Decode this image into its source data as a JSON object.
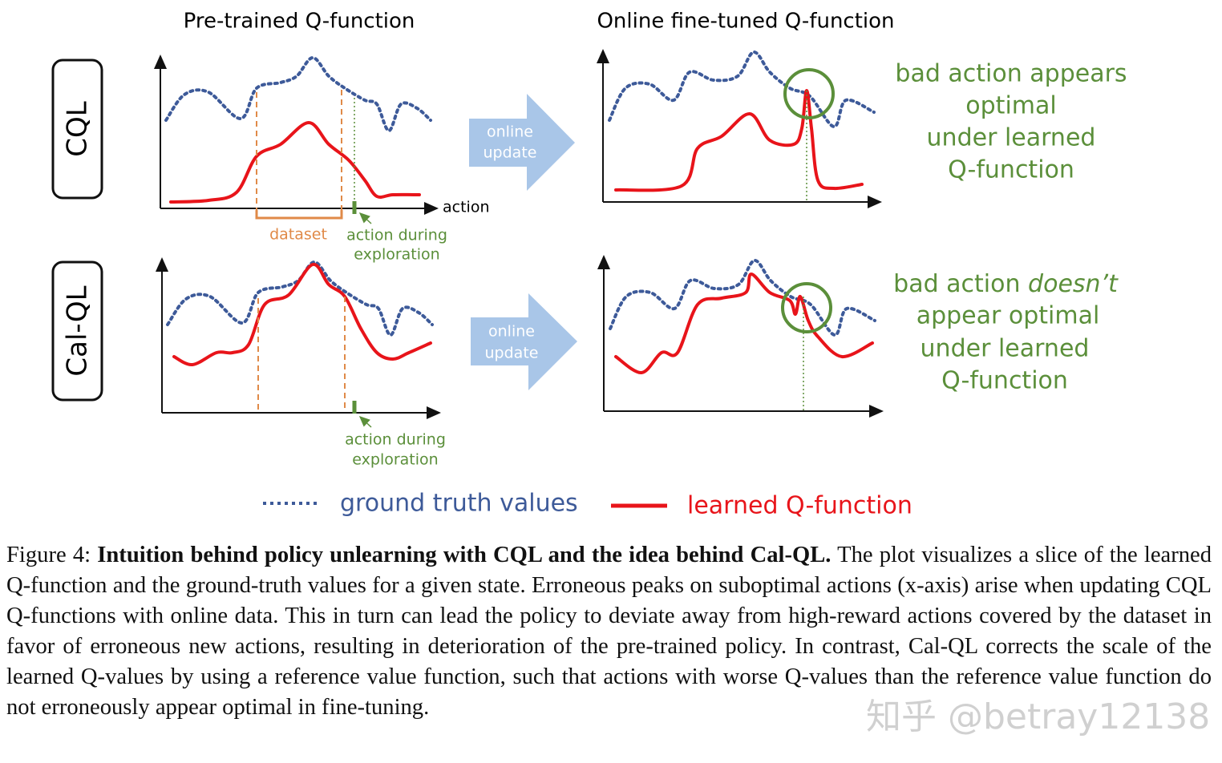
{
  "figure": {
    "left_title": "Pre-trained Q-function",
    "right_title": "Online fine-tuned Q-function",
    "rows": [
      {
        "label": "CQL",
        "arrow_label": [
          "online",
          "update"
        ],
        "x_axis_label": "action",
        "dataset_label": "dataset",
        "exploration_label": [
          "action during",
          "exploration"
        ],
        "annotation": [
          "bad action appears",
          "optimal",
          "under learned",
          "Q-function"
        ]
      },
      {
        "label": "Cal-QL",
        "arrow_label": [
          "online",
          "update"
        ],
        "exploration_label": [
          "action during",
          "exploration"
        ],
        "annotation_first": [
          "bad action ",
          "doesn’t"
        ],
        "annotation": [
          "appear optimal",
          "under learned",
          "Q-function"
        ]
      }
    ],
    "legend": {
      "ground_truth": "ground truth values",
      "learned": "learned Q-function"
    }
  },
  "caption": {
    "label": "Figure 4:",
    "bold": "Intuition behind policy unlearning with CQL and the idea behind Cal-QL.",
    "text": "The plot visualizes a slice of the learned Q-function and the ground-truth values for a given state. Erroneous peaks on suboptimal actions (x-axis) arise when updating CQL Q-functions with online data. This in turn can lead the policy to deviate away from high-reward actions covered by the dataset in favor of erroneous new actions, resulting in deterioration of the pre-trained policy. In contrast, Cal-QL corrects the scale of the learned Q-values by using a reference value function, such that actions with worse Q-values than the reference value function do not erroneously appear optimal in fine-tuning."
  },
  "watermark": "知乎 @betray12138"
}
